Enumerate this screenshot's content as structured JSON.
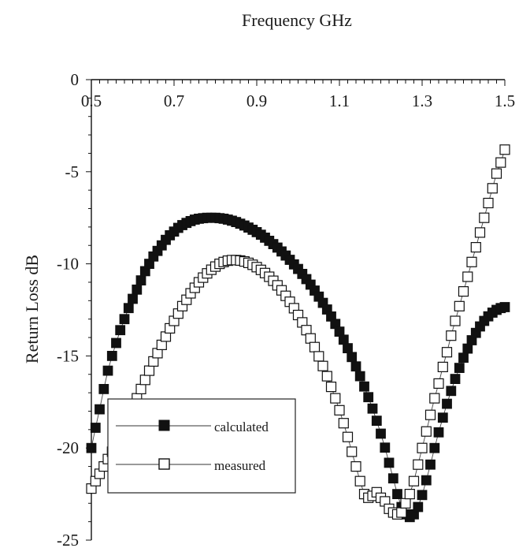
{
  "chart_data": {
    "type": "scatter",
    "title": "",
    "xlabel": "Frequency  GHz",
    "ylabel": "Return Loss  dB",
    "xlim": [
      0.5,
      1.5
    ],
    "ylim": [
      -25,
      0
    ],
    "x_axis_position": "top",
    "x_ticks": [
      0.5,
      0.7,
      0.9,
      1.1,
      1.3,
      1.5
    ],
    "x_tick_labels": [
      "0.5",
      "0.7",
      "0.9",
      "1.1",
      "1.3",
      "1.5"
    ],
    "y_ticks": [
      0,
      -5,
      -10,
      -15,
      -20,
      -25
    ],
    "y_tick_labels": [
      "0",
      "-5",
      "-10",
      "-15",
      "-20",
      "-25"
    ],
    "grid": false,
    "legend_position": "bottom-left",
    "series": [
      {
        "name": "calculated",
        "marker": "filled-square",
        "color": "#111111",
        "x": [
          0.5,
          0.51,
          0.52,
          0.53,
          0.54,
          0.55,
          0.56,
          0.57,
          0.58,
          0.59,
          0.6,
          0.61,
          0.62,
          0.63,
          0.64,
          0.65,
          0.66,
          0.67,
          0.68,
          0.69,
          0.7,
          0.71,
          0.72,
          0.73,
          0.74,
          0.75,
          0.76,
          0.77,
          0.78,
          0.79,
          0.8,
          0.81,
          0.82,
          0.83,
          0.84,
          0.85,
          0.86,
          0.87,
          0.88,
          0.89,
          0.9,
          0.91,
          0.92,
          0.93,
          0.94,
          0.95,
          0.96,
          0.97,
          0.98,
          0.99,
          1.0,
          1.01,
          1.02,
          1.03,
          1.04,
          1.05,
          1.06,
          1.07,
          1.08,
          1.09,
          1.1,
          1.11,
          1.12,
          1.13,
          1.14,
          1.15,
          1.16,
          1.17,
          1.18,
          1.19,
          1.2,
          1.21,
          1.22,
          1.23,
          1.24,
          1.25,
          1.26,
          1.27,
          1.28,
          1.29,
          1.3,
          1.31,
          1.32,
          1.33,
          1.34,
          1.35,
          1.36,
          1.37,
          1.38,
          1.39,
          1.4,
          1.41,
          1.42,
          1.43,
          1.44,
          1.45,
          1.46,
          1.47,
          1.48,
          1.49,
          1.5
        ],
        "values": [
          -20.0,
          -18.9,
          -17.9,
          -16.8,
          -15.8,
          -15.0,
          -14.3,
          -13.6,
          -13.0,
          -12.4,
          -11.9,
          -11.4,
          -10.9,
          -10.4,
          -10.0,
          -9.6,
          -9.3,
          -9.0,
          -8.7,
          -8.45,
          -8.25,
          -8.05,
          -7.9,
          -7.78,
          -7.68,
          -7.6,
          -7.55,
          -7.52,
          -7.5,
          -7.5,
          -7.5,
          -7.52,
          -7.55,
          -7.6,
          -7.66,
          -7.73,
          -7.82,
          -7.92,
          -8.03,
          -8.15,
          -8.28,
          -8.42,
          -8.58,
          -8.75,
          -8.93,
          -9.12,
          -9.33,
          -9.55,
          -9.78,
          -10.03,
          -10.28,
          -10.55,
          -10.83,
          -11.13,
          -11.45,
          -11.78,
          -12.12,
          -12.48,
          -12.86,
          -13.26,
          -13.68,
          -14.12,
          -14.58,
          -15.06,
          -15.57,
          -16.1,
          -16.66,
          -17.24,
          -17.86,
          -18.52,
          -19.22,
          -19.98,
          -20.8,
          -21.65,
          -22.5,
          -23.2,
          -23.6,
          -23.75,
          -23.6,
          -23.2,
          -22.55,
          -21.75,
          -20.9,
          -20.0,
          -19.15,
          -18.35,
          -17.6,
          -16.9,
          -16.25,
          -15.65,
          -15.1,
          -14.6,
          -14.15,
          -13.75,
          -13.4,
          -13.1,
          -12.85,
          -12.65,
          -12.5,
          -12.4,
          -12.35
        ]
      },
      {
        "name": "measured",
        "marker": "open-square",
        "color": "#111111",
        "x": [
          0.5,
          0.51,
          0.52,
          0.53,
          0.54,
          0.55,
          0.56,
          0.57,
          0.58,
          0.59,
          0.6,
          0.61,
          0.62,
          0.63,
          0.64,
          0.65,
          0.66,
          0.67,
          0.68,
          0.69,
          0.7,
          0.71,
          0.72,
          0.73,
          0.74,
          0.75,
          0.76,
          0.77,
          0.78,
          0.79,
          0.8,
          0.81,
          0.82,
          0.83,
          0.84,
          0.85,
          0.86,
          0.87,
          0.88,
          0.89,
          0.9,
          0.91,
          0.92,
          0.93,
          0.94,
          0.95,
          0.96,
          0.97,
          0.98,
          0.99,
          1.0,
          1.01,
          1.02,
          1.03,
          1.04,
          1.05,
          1.06,
          1.07,
          1.08,
          1.09,
          1.1,
          1.11,
          1.12,
          1.13,
          1.14,
          1.15,
          1.16,
          1.17,
          1.18,
          1.19,
          1.2,
          1.21,
          1.22,
          1.23,
          1.24,
          1.25,
          1.26,
          1.27,
          1.28,
          1.29,
          1.3,
          1.31,
          1.32,
          1.33,
          1.34,
          1.35,
          1.36,
          1.37,
          1.38,
          1.39,
          1.4,
          1.41,
          1.42,
          1.43,
          1.44,
          1.45,
          1.46,
          1.47,
          1.48,
          1.49,
          1.5
        ],
        "values": [
          -22.2,
          -21.8,
          -21.4,
          -21.0,
          -20.6,
          -20.2,
          -19.8,
          -19.3,
          -18.8,
          -18.3,
          -17.8,
          -17.3,
          -16.8,
          -16.3,
          -15.8,
          -15.3,
          -14.85,
          -14.4,
          -13.95,
          -13.5,
          -13.1,
          -12.7,
          -12.3,
          -11.95,
          -11.6,
          -11.3,
          -11.0,
          -10.75,
          -10.52,
          -10.32,
          -10.15,
          -10.0,
          -9.9,
          -9.83,
          -9.8,
          -9.8,
          -9.82,
          -9.87,
          -9.95,
          -10.05,
          -10.18,
          -10.33,
          -10.5,
          -10.7,
          -10.92,
          -11.17,
          -11.44,
          -11.74,
          -12.06,
          -12.41,
          -12.78,
          -13.18,
          -13.6,
          -14.05,
          -14.52,
          -15.02,
          -15.55,
          -16.1,
          -16.68,
          -17.3,
          -17.95,
          -18.65,
          -19.4,
          -20.2,
          -21.0,
          -21.8,
          -22.5,
          -22.7,
          -22.6,
          -22.4,
          -22.7,
          -22.9,
          -23.3,
          -23.5,
          -23.6,
          -23.5,
          -23.0,
          -22.5,
          -21.8,
          -20.9,
          -20.0,
          -19.1,
          -18.2,
          -17.3,
          -16.5,
          -15.6,
          -14.8,
          -13.9,
          -13.1,
          -12.3,
          -11.5,
          -10.7,
          -9.9,
          -9.1,
          -8.3,
          -7.5,
          -6.7,
          -5.9,
          -5.1,
          -4.5,
          -3.8
        ]
      }
    ]
  }
}
